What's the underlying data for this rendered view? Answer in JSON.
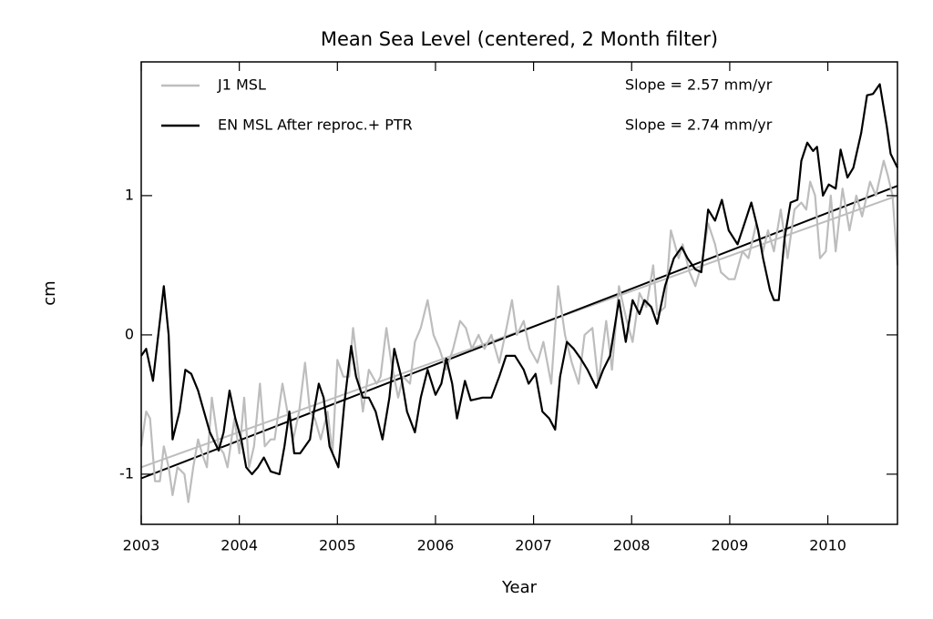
{
  "chart_data": {
    "type": "line",
    "title": "Mean Sea Level (centered, 2 Month filter)",
    "xlabel": "Year",
    "ylabel": "cm",
    "xlim": [
      2003,
      2010.71
    ],
    "ylim": [
      -1.36,
      1.96
    ],
    "xticks": [
      2003,
      2004,
      2005,
      2006,
      2007,
      2008,
      2009,
      2010
    ],
    "yticks": [
      -1,
      0,
      1
    ],
    "legend": "upper left",
    "annotations": [
      "Slope = 2.57 mm/yr",
      "Slope = 2.74 mm/yr"
    ],
    "series": [
      {
        "name": "J1 MSL",
        "color": "#bdbdbd",
        "x": [
          2003.0,
          2003.05,
          2003.09,
          2003.14,
          2003.19,
          2003.23,
          2003.28,
          2003.32,
          2003.37,
          2003.44,
          2003.48,
          2003.53,
          2003.58,
          2003.62,
          2003.67,
          2003.72,
          2003.79,
          2003.84,
          2003.88,
          2003.95,
          2004.0,
          2004.05,
          2004.1,
          2004.15,
          2004.21,
          2004.26,
          2004.32,
          2004.36,
          2004.44,
          2004.49,
          2004.55,
          2004.61,
          2004.67,
          2004.72,
          2004.77,
          2004.83,
          2004.9,
          2004.95,
          2005.0,
          2005.06,
          2005.12,
          2005.16,
          2005.21,
          2005.26,
          2005.32,
          2005.4,
          2005.44,
          2005.5,
          2005.55,
          2005.62,
          2005.67,
          2005.74,
          2005.79,
          2005.85,
          2005.92,
          2005.98,
          2006.04,
          2006.11,
          2006.18,
          2006.25,
          2006.31,
          2006.37,
          2006.44,
          2006.5,
          2006.57,
          2006.65,
          2006.71,
          2006.78,
          2006.83,
          2006.9,
          2006.96,
          2007.04,
          2007.1,
          2007.18,
          2007.25,
          2007.32,
          2007.39,
          2007.46,
          2007.52,
          2007.6,
          2007.66,
          2007.74,
          2007.8,
          2007.87,
          2007.95,
          2008.01,
          2008.08,
          2008.15,
          2008.22,
          2008.26,
          2008.34,
          2008.4,
          2008.48,
          2008.52,
          2008.59,
          2008.65,
          2008.71,
          2008.78,
          2008.85,
          2008.91,
          2008.99,
          2009.05,
          2009.13,
          2009.19,
          2009.27,
          2009.34,
          2009.39,
          2009.45,
          2009.52,
          2009.59,
          2009.66,
          2009.73,
          2009.78,
          2009.82,
          2009.87,
          2009.92,
          2009.98,
          2010.03,
          2010.08,
          2010.15,
          2010.22,
          2010.29,
          2010.35,
          2010.43,
          2010.49,
          2010.57,
          2010.61,
          2010.66,
          2010.71
        ],
        "values": [
          -0.8,
          -0.55,
          -0.6,
          -1.05,
          -1.05,
          -0.8,
          -0.95,
          -1.15,
          -0.95,
          -1.0,
          -1.2,
          -0.95,
          -0.75,
          -0.85,
          -0.95,
          -0.45,
          -0.8,
          -0.85,
          -0.95,
          -0.6,
          -0.85,
          -0.45,
          -0.95,
          -0.8,
          -0.35,
          -0.8,
          -0.75,
          -0.75,
          -0.35,
          -0.55,
          -0.75,
          -0.55,
          -0.2,
          -0.55,
          -0.6,
          -0.75,
          -0.55,
          -0.85,
          -0.18,
          -0.3,
          -0.3,
          0.05,
          -0.25,
          -0.55,
          -0.25,
          -0.35,
          -0.3,
          0.05,
          -0.2,
          -0.45,
          -0.3,
          -0.35,
          -0.05,
          0.05,
          0.25,
          0.0,
          -0.1,
          -0.25,
          -0.1,
          0.1,
          0.05,
          -0.1,
          0.0,
          -0.1,
          0.0,
          -0.2,
          0.0,
          0.25,
          0.0,
          0.1,
          -0.1,
          -0.2,
          -0.05,
          -0.35,
          0.35,
          0.0,
          -0.2,
          -0.35,
          0.0,
          0.05,
          -0.35,
          0.1,
          -0.25,
          0.35,
          0.1,
          -0.05,
          0.3,
          0.2,
          0.5,
          0.15,
          0.2,
          0.75,
          0.55,
          0.65,
          0.45,
          0.35,
          0.5,
          0.8,
          0.65,
          0.45,
          0.4,
          0.4,
          0.6,
          0.55,
          0.8,
          0.6,
          0.75,
          0.6,
          0.9,
          0.55,
          0.9,
          0.95,
          0.9,
          1.1,
          1.0,
          0.55,
          0.6,
          1.0,
          0.6,
          1.05,
          0.75,
          1.0,
          0.85,
          1.1,
          1.0,
          1.25,
          1.15,
          1.0,
          0.5
        ]
      },
      {
        "name": "EN MSL After reproc.+ PTR",
        "color": "#000000",
        "x": [
          2003.0,
          2003.05,
          2003.12,
          2003.19,
          2003.23,
          2003.28,
          2003.32,
          2003.39,
          2003.45,
          2003.51,
          2003.58,
          2003.62,
          2003.7,
          2003.79,
          2003.84,
          2003.9,
          2003.96,
          2004.02,
          2004.07,
          2004.13,
          2004.19,
          2004.25,
          2004.32,
          2004.41,
          2004.46,
          2004.51,
          2004.56,
          2004.62,
          2004.72,
          2004.76,
          2004.81,
          2004.86,
          2004.92,
          2005.01,
          2005.07,
          2005.14,
          2005.19,
          2005.26,
          2005.32,
          2005.39,
          2005.46,
          2005.53,
          2005.58,
          2005.65,
          2005.71,
          2005.79,
          2005.85,
          2005.92,
          2006.0,
          2006.06,
          2006.11,
          2006.17,
          2006.22,
          2006.3,
          2006.36,
          2006.48,
          2006.57,
          2006.65,
          2006.72,
          2006.81,
          2006.9,
          2006.95,
          2007.02,
          2007.09,
          2007.16,
          2007.22,
          2007.27,
          2007.34,
          2007.41,
          2007.48,
          2007.55,
          2007.64,
          2007.71,
          2007.78,
          2007.87,
          2007.94,
          2008.01,
          2008.08,
          2008.13,
          2008.2,
          2008.26,
          2008.34,
          2008.43,
          2008.51,
          2008.57,
          2008.65,
          2008.71,
          2008.78,
          2008.85,
          2008.92,
          2008.99,
          2009.08,
          2009.15,
          2009.22,
          2009.29,
          2009.34,
          2009.41,
          2009.45,
          2009.5,
          2009.56,
          2009.62,
          2009.69,
          2009.73,
          2009.79,
          2009.85,
          2009.89,
          2009.95,
          2010.01,
          2010.08,
          2010.13,
          2010.2,
          2010.26,
          2010.34,
          2010.4,
          2010.46,
          2010.53,
          2010.6,
          2010.64,
          2010.71
        ],
        "values": [
          -0.15,
          -0.1,
          -0.33,
          0.1,
          0.35,
          0.0,
          -0.75,
          -0.55,
          -0.25,
          -0.28,
          -0.4,
          -0.5,
          -0.7,
          -0.83,
          -0.7,
          -0.4,
          -0.6,
          -0.75,
          -0.95,
          -1.0,
          -0.95,
          -0.88,
          -0.98,
          -1.0,
          -0.8,
          -0.55,
          -0.85,
          -0.85,
          -0.75,
          -0.55,
          -0.35,
          -0.45,
          -0.8,
          -0.95,
          -0.5,
          -0.08,
          -0.3,
          -0.45,
          -0.45,
          -0.55,
          -0.75,
          -0.45,
          -0.1,
          -0.3,
          -0.55,
          -0.7,
          -0.45,
          -0.25,
          -0.43,
          -0.35,
          -0.17,
          -0.35,
          -0.6,
          -0.33,
          -0.47,
          -0.45,
          -0.45,
          -0.3,
          -0.15,
          -0.15,
          -0.25,
          -0.35,
          -0.28,
          -0.55,
          -0.6,
          -0.68,
          -0.3,
          -0.05,
          -0.1,
          -0.17,
          -0.25,
          -0.38,
          -0.25,
          -0.15,
          0.25,
          -0.05,
          0.25,
          0.15,
          0.25,
          0.2,
          0.08,
          0.35,
          0.55,
          0.63,
          0.55,
          0.47,
          0.45,
          0.9,
          0.82,
          0.97,
          0.75,
          0.65,
          0.8,
          0.95,
          0.75,
          0.55,
          0.32,
          0.25,
          0.25,
          0.7,
          0.95,
          0.97,
          1.25,
          1.38,
          1.32,
          1.35,
          1.0,
          1.08,
          1.05,
          1.33,
          1.13,
          1.2,
          1.45,
          1.72,
          1.73,
          1.8,
          1.5,
          1.3,
          1.2
        ]
      }
    ],
    "trend_lines": [
      {
        "color": "#bdbdbd",
        "x": [
          2003,
          2010.71
        ],
        "values": [
          -0.95,
          1.0
        ]
      },
      {
        "color": "#000000",
        "x": [
          2003,
          2010.71
        ],
        "values": [
          -1.03,
          1.07
        ]
      }
    ]
  }
}
